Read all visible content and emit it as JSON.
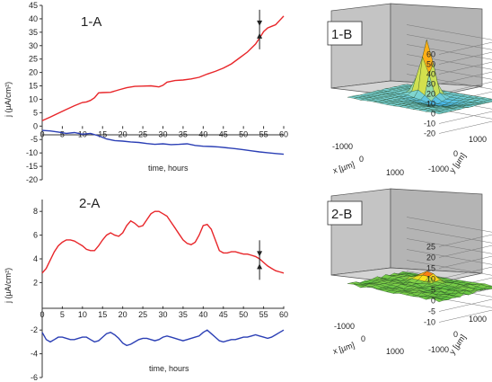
{
  "figure": {
    "panels": {
      "p1a": "1-A",
      "p1b": "1-B",
      "p2a": "2-A",
      "p2b": "2-B"
    }
  },
  "chart_data": [
    {
      "id": "1-A",
      "type": "line",
      "title": "1-A",
      "xlabel": "time, hours",
      "ylabel": "j (µA/cm²)",
      "xlim": [
        0,
        60
      ],
      "ylim": [
        -20,
        45
      ],
      "xticks": [
        0,
        5,
        10,
        15,
        20,
        25,
        30,
        35,
        40,
        45,
        50,
        55,
        60
      ],
      "yticks": [
        -20,
        -15,
        -10,
        -5,
        0,
        5,
        10,
        15,
        20,
        25,
        30,
        35,
        40,
        45
      ],
      "colors": {
        "upper": "#e8262a",
        "lower": "#2b3fb5"
      },
      "series": [
        {
          "x": [
            0,
            2,
            4,
            6,
            8,
            10,
            11,
            12,
            13,
            14,
            15,
            17,
            19,
            21,
            23,
            25,
            27,
            29,
            30,
            31,
            33,
            35,
            37,
            39,
            41,
            43,
            45,
            47,
            49,
            51,
            53,
            54,
            55,
            56,
            57,
            58,
            59,
            60
          ],
          "values": [
            2,
            3.4,
            4.8,
            6.2,
            7.6,
            8.8,
            9.0,
            9.6,
            10.6,
            12.4,
            12.5,
            12.6,
            13.5,
            14.3,
            14.8,
            14.9,
            15.0,
            14.6,
            15.2,
            16.4,
            17.0,
            17.2,
            17.6,
            18.2,
            19.4,
            20.4,
            21.6,
            23.2,
            25.4,
            27.6,
            30.6,
            32.8,
            35.2,
            36.6,
            37.2,
            37.8,
            39.4,
            41.0
          ]
        },
        {
          "x": [
            0,
            2,
            4,
            6,
            8,
            10,
            12,
            14,
            16,
            18,
            20,
            22,
            24,
            26,
            28,
            30,
            32,
            34,
            36,
            38,
            40,
            42,
            44,
            46,
            48,
            50,
            52,
            54,
            56,
            58,
            60
          ],
          "values": [
            -1.6,
            -1.8,
            -2.2,
            -2.7,
            -2.4,
            -3.0,
            -2.7,
            -3.6,
            -4.8,
            -5.4,
            -5.6,
            -5.9,
            -6.1,
            -6.5,
            -6.8,
            -6.6,
            -6.9,
            -6.8,
            -6.6,
            -7.2,
            -7.5,
            -7.6,
            -7.8,
            -8.1,
            -8.4,
            -8.8,
            -9.2,
            -9.6,
            -9.9,
            -10.2,
            -10.5
          ]
        }
      ],
      "annotations": [
        {
          "type": "double-arrow",
          "x": 54,
          "y": 36
        }
      ]
    },
    {
      "id": "2-A",
      "type": "line",
      "title": "2-A",
      "xlabel": "time, hours",
      "ylabel": "j (µA/cm²)",
      "xlim": [
        0,
        60
      ],
      "ylim": [
        -6,
        9
      ],
      "xticks": [
        0,
        5,
        10,
        15,
        20,
        25,
        30,
        35,
        40,
        45,
        50,
        55,
        60
      ],
      "yticks": [
        -6,
        -4,
        -2,
        2,
        4,
        6,
        8
      ],
      "colors": {
        "upper": "#e8262a",
        "lower": "#2b3fb5"
      },
      "series": [
        {
          "x": [
            0,
            1,
            2,
            3,
            4,
            5,
            6,
            7,
            8,
            9,
            10,
            11,
            12,
            13,
            14,
            15,
            16,
            17,
            18,
            19,
            20,
            21,
            22,
            23,
            24,
            25,
            26,
            27,
            28,
            29,
            30,
            31,
            32,
            33,
            34,
            35,
            36,
            37,
            38,
            39,
            40,
            41,
            42,
            43,
            44,
            45,
            46,
            47,
            48,
            49,
            50,
            51,
            52,
            53,
            54,
            55,
            56,
            57,
            58,
            59,
            60
          ],
          "values": [
            2.8,
            3.2,
            3.9,
            4.6,
            5.1,
            5.4,
            5.6,
            5.6,
            5.5,
            5.3,
            5.1,
            4.8,
            4.7,
            4.7,
            5.1,
            5.6,
            6.0,
            6.2,
            6.0,
            5.9,
            6.2,
            6.8,
            7.2,
            7.0,
            6.7,
            6.8,
            7.3,
            7.8,
            8.0,
            8.0,
            7.8,
            7.6,
            7.1,
            6.6,
            6.1,
            5.6,
            5.3,
            5.2,
            5.4,
            6.0,
            6.8,
            6.9,
            6.5,
            5.6,
            4.7,
            4.5,
            4.5,
            4.6,
            4.6,
            4.5,
            4.4,
            4.4,
            4.3,
            4.2,
            4.0,
            3.7,
            3.4,
            3.2,
            3.0,
            2.9,
            2.8
          ]
        },
        {
          "x": [
            0,
            1,
            2,
            3,
            4,
            5,
            6,
            7,
            8,
            9,
            10,
            11,
            12,
            13,
            14,
            15,
            16,
            17,
            18,
            19,
            20,
            21,
            22,
            23,
            24,
            25,
            26,
            27,
            28,
            29,
            30,
            31,
            32,
            33,
            34,
            35,
            36,
            37,
            38,
            39,
            40,
            41,
            42,
            43,
            44,
            45,
            46,
            47,
            48,
            49,
            50,
            51,
            52,
            53,
            54,
            55,
            56,
            57,
            58,
            59,
            60
          ],
          "values": [
            -2.2,
            -2.8,
            -3.0,
            -2.8,
            -2.6,
            -2.6,
            -2.7,
            -2.8,
            -2.8,
            -2.7,
            -2.6,
            -2.6,
            -2.8,
            -3.0,
            -2.9,
            -2.6,
            -2.3,
            -2.2,
            -2.4,
            -2.7,
            -3.1,
            -3.3,
            -3.2,
            -3.0,
            -2.8,
            -2.7,
            -2.7,
            -2.8,
            -2.9,
            -2.8,
            -2.6,
            -2.5,
            -2.6,
            -2.7,
            -2.8,
            -2.9,
            -2.8,
            -2.7,
            -2.6,
            -2.5,
            -2.2,
            -2.0,
            -2.3,
            -2.6,
            -2.9,
            -3.0,
            -2.9,
            -2.8,
            -2.8,
            -2.7,
            -2.6,
            -2.6,
            -2.5,
            -2.4,
            -2.5,
            -2.6,
            -2.7,
            -2.6,
            -2.4,
            -2.2,
            -2.0
          ]
        }
      ],
      "annotations": [
        {
          "type": "double-arrow",
          "x": 54,
          "y": 3.9
        }
      ]
    },
    {
      "id": "1-B",
      "type": "surface",
      "title": "1-B",
      "xlabel": "x [µm]",
      "ylabel": "y [µm]",
      "zlim": [
        -20,
        60
      ],
      "zticks": [
        -20,
        -10,
        0,
        10,
        20,
        30,
        40,
        50,
        60
      ],
      "xticks": [
        -1000,
        0,
        1000
      ],
      "yticks": [
        -1000,
        0,
        1000
      ],
      "peak": {
        "x": 400,
        "y": 800,
        "z": 58
      },
      "baseline_z": 0,
      "depression": {
        "x": -300,
        "y": 300,
        "z": -6
      },
      "colormap": [
        "#28a7ff",
        "#7fd6d0",
        "#c8e05a",
        "#ffe21a",
        "#ff8a14",
        "#e11b17"
      ]
    },
    {
      "id": "2-B",
      "type": "surface",
      "title": "2-B",
      "xlabel": "x [µm]",
      "ylabel": "y [µm]",
      "zlim": [
        -10,
        25
      ],
      "zticks": [
        -10,
        -5,
        0,
        5,
        10,
        15,
        20,
        25
      ],
      "xticks": [
        -1000,
        0,
        1000
      ],
      "yticks": [
        -1000,
        0,
        1000
      ],
      "peak": {
        "x": 400,
        "y": 800,
        "z": 4
      },
      "baseline_z": 0,
      "colormap": [
        "#46b43a",
        "#7ed049",
        "#ffe21a",
        "#ff8a14",
        "#e11b17"
      ]
    }
  ]
}
